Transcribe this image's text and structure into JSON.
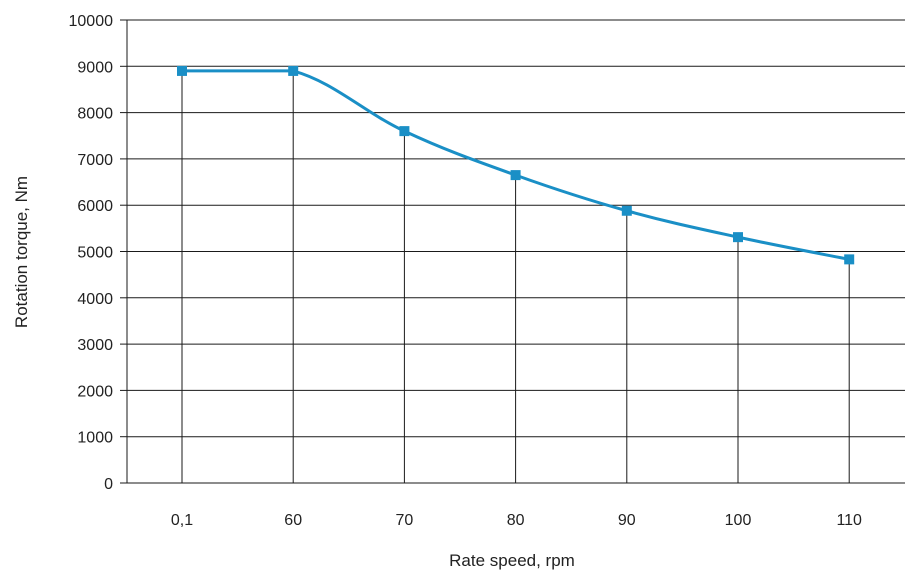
{
  "chart_data": {
    "type": "line",
    "xlabel": "Rate speed, rpm",
    "ylabel": "Rotation torque, Nm",
    "categories": [
      "0,1",
      "60",
      "70",
      "80",
      "90",
      "100",
      "110"
    ],
    "series": [
      {
        "values": [
          8900,
          8900,
          7600,
          6650,
          5880,
          5310,
          4830
        ]
      }
    ],
    "ylim": [
      0,
      10000
    ],
    "yticks": [
      "0",
      "1000",
      "2000",
      "3000",
      "4000",
      "5000",
      "6000",
      "7000",
      "8000",
      "9000",
      "10000"
    ],
    "grid": "horizontal",
    "drop_lines": true,
    "line_color": "#1a8fc6",
    "marker": "square"
  }
}
